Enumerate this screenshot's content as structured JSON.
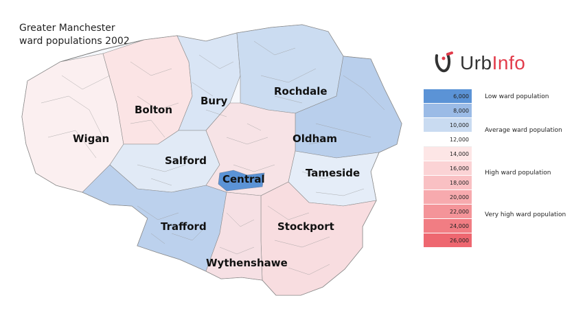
{
  "title": {
    "line1": "Greater Manchester",
    "line2": "ward populations 2002"
  },
  "logo": {
    "icon": "urbinfo-logo-icon",
    "text_urb": "Urb",
    "text_info": "Info"
  },
  "areas": [
    {
      "name": "Bolton",
      "shade": "#fbe6e6"
    },
    {
      "name": "Bury",
      "shade": "#d7e4f4"
    },
    {
      "name": "Rochdale",
      "shade": "#c7d9f0"
    },
    {
      "name": "Wigan",
      "shade": "#fdf0f0"
    },
    {
      "name": "Oldham",
      "shade": "#d3e2f3"
    },
    {
      "name": "Salford",
      "shade": "#dfe9f6"
    },
    {
      "name": "Tameside",
      "shade": "#e3ecf7"
    },
    {
      "name": "Central",
      "shade": "#5b93d6"
    },
    {
      "name": "Trafford",
      "shade": "#b9cfec"
    },
    {
      "name": "Stockport",
      "shade": "#f9d9dc"
    },
    {
      "name": "Wythenshawe",
      "shade": "#f7e0e3"
    }
  ],
  "legend": {
    "bins": [
      {
        "value": "6,000",
        "color": "#5b93d6"
      },
      {
        "value": "8,000",
        "color": "#9bbbe6"
      },
      {
        "value": "10,000",
        "color": "#c9dbf1"
      },
      {
        "value": "12,000",
        "color": "#ffffff"
      },
      {
        "value": "14,000",
        "color": "#fde6e6"
      },
      {
        "value": "16,000",
        "color": "#fbd3d5"
      },
      {
        "value": "18,000",
        "color": "#f9c0c3"
      },
      {
        "value": "20,000",
        "color": "#f7aaae"
      },
      {
        "value": "22,000",
        "color": "#f49499"
      },
      {
        "value": "24,000",
        "color": "#f17d83"
      },
      {
        "value": "26,000",
        "color": "#ee6770"
      }
    ],
    "labels": {
      "low": "Low ward population",
      "average": "Average ward population",
      "high": "High ward population",
      "very_high": "Very high ward population"
    }
  }
}
